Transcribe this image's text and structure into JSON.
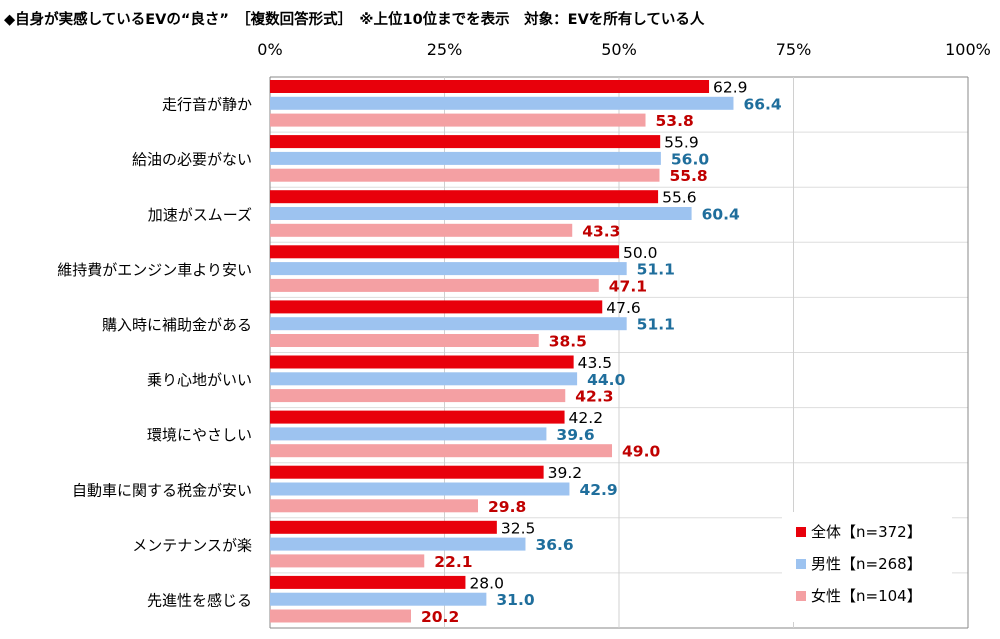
{
  "chart_data": {
    "type": "bar",
    "orientation": "horizontal",
    "title": "◆自身が実感しているEVの“良さ”　［複数回答形式］　※上位10位までを表示　対象：EVを所有している人",
    "xlim": [
      0,
      100
    ],
    "xticks": [
      "0%",
      "25%",
      "50%",
      "75%",
      "100%"
    ],
    "tick_values": [
      0,
      25,
      50,
      75,
      100
    ],
    "grid": true,
    "legend_position": "bottom-right",
    "categories": [
      "走行音が静か",
      "給油の必要がない",
      "加速がスムーズ",
      "維持費がエンジン車より安い",
      "購入時に補助金がある",
      "乗り心地がいい",
      "環境にやさしい",
      "自動車に関する税金が安い",
      "メンテナンスが楽",
      "先進性を感じる"
    ],
    "series": [
      {
        "name": "全体【n=372】",
        "color": "#e8000b",
        "label_color": "#000000",
        "values": [
          62.9,
          55.9,
          55.6,
          50.0,
          47.6,
          43.5,
          42.2,
          39.2,
          32.5,
          28.0
        ]
      },
      {
        "name": "男性【n=268】",
        "color": "#9dc3f0",
        "label_color": "#1f6e9c",
        "values": [
          66.4,
          56.0,
          60.4,
          51.1,
          51.1,
          44.0,
          39.6,
          42.9,
          36.6,
          31.0
        ]
      },
      {
        "name": "女性【n=104】",
        "color": "#f4a0a3",
        "label_color": "#c00000",
        "values": [
          53.8,
          55.8,
          43.3,
          47.1,
          38.5,
          42.3,
          49.0,
          29.8,
          22.1,
          20.2
        ]
      }
    ]
  }
}
